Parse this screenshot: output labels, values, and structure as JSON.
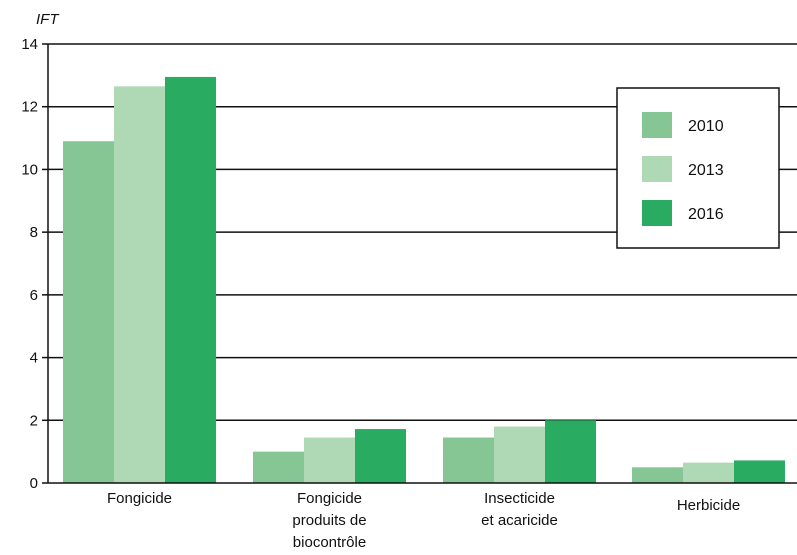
{
  "chart_data": {
    "type": "bar",
    "title": "",
    "xlabel": "",
    "ylabel": "IFT",
    "ylim": [
      0,
      14
    ],
    "yticks": [
      "0",
      "2",
      "4",
      "6",
      "8",
      "10",
      "12",
      "14"
    ],
    "grid": "horizontal",
    "legend_position": "top-right",
    "categories": [
      [
        "Fongicide"
      ],
      [
        "Fongicide",
        "produits de",
        "biocontrôle"
      ],
      [
        "Insecticide",
        "et acaricide"
      ],
      [
        "Herbicide"
      ]
    ],
    "series": [
      {
        "name": "2010",
        "color": "#86c594",
        "values": [
          10.9,
          1.0,
          1.45,
          0.5
        ]
      },
      {
        "name": "2013",
        "color": "#afd9b5",
        "values": [
          12.65,
          1.45,
          1.8,
          0.65
        ]
      },
      {
        "name": "2016",
        "color": "#2aab62",
        "values": [
          12.95,
          1.72,
          2.0,
          0.72
        ]
      }
    ]
  }
}
